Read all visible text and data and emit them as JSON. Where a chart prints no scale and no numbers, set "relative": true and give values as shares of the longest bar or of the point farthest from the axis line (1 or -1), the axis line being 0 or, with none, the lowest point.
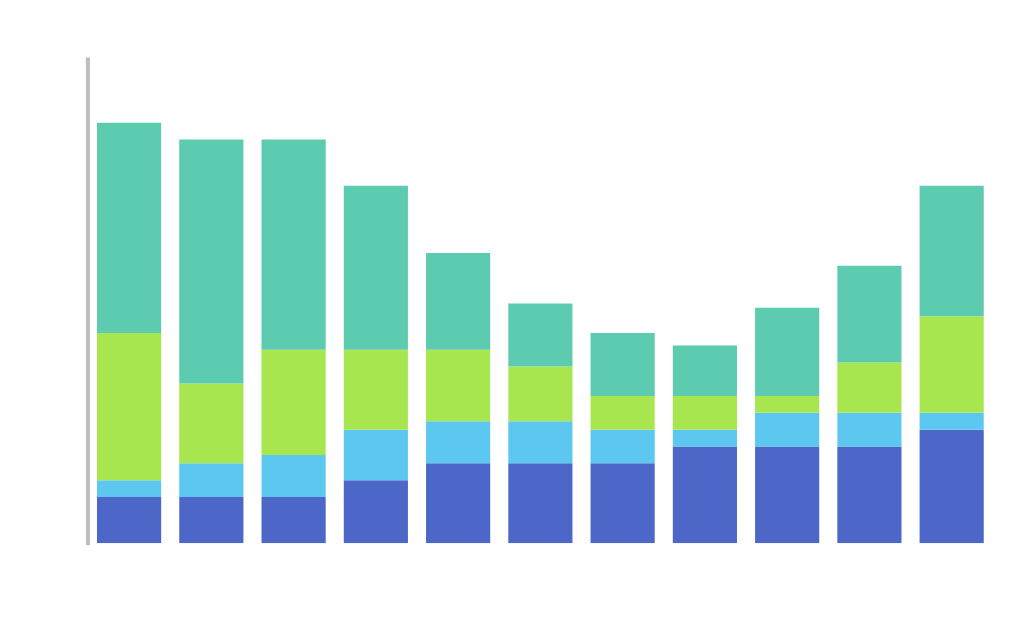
{
  "chart_data": {
    "type": "bar",
    "stacked": true,
    "relative": true,
    "categories": [
      null,
      null,
      null,
      null,
      null,
      null,
      null,
      null,
      null,
      null,
      null
    ],
    "series": [
      {
        "color": "#4c67c8",
        "values": [
          0.11,
          0.11,
          0.11,
          0.15,
          0.19,
          0.19,
          0.19,
          0.23,
          0.23,
          0.23,
          0.27
        ]
      },
      {
        "color": "#5cc8f0",
        "values": [
          0.04,
          0.08,
          0.1,
          0.12,
          0.1,
          0.1,
          0.08,
          0.04,
          0.08,
          0.08,
          0.04
        ]
      },
      {
        "color": "#a8e650",
        "values": [
          0.35,
          0.19,
          0.25,
          0.19,
          0.17,
          0.13,
          0.08,
          0.08,
          0.04,
          0.12,
          0.23
        ]
      },
      {
        "color": "#5ccbb0",
        "values": [
          0.5,
          0.58,
          0.5,
          0.39,
          0.23,
          0.15,
          0.15,
          0.12,
          0.21,
          0.23,
          0.31
        ]
      }
    ]
  }
}
